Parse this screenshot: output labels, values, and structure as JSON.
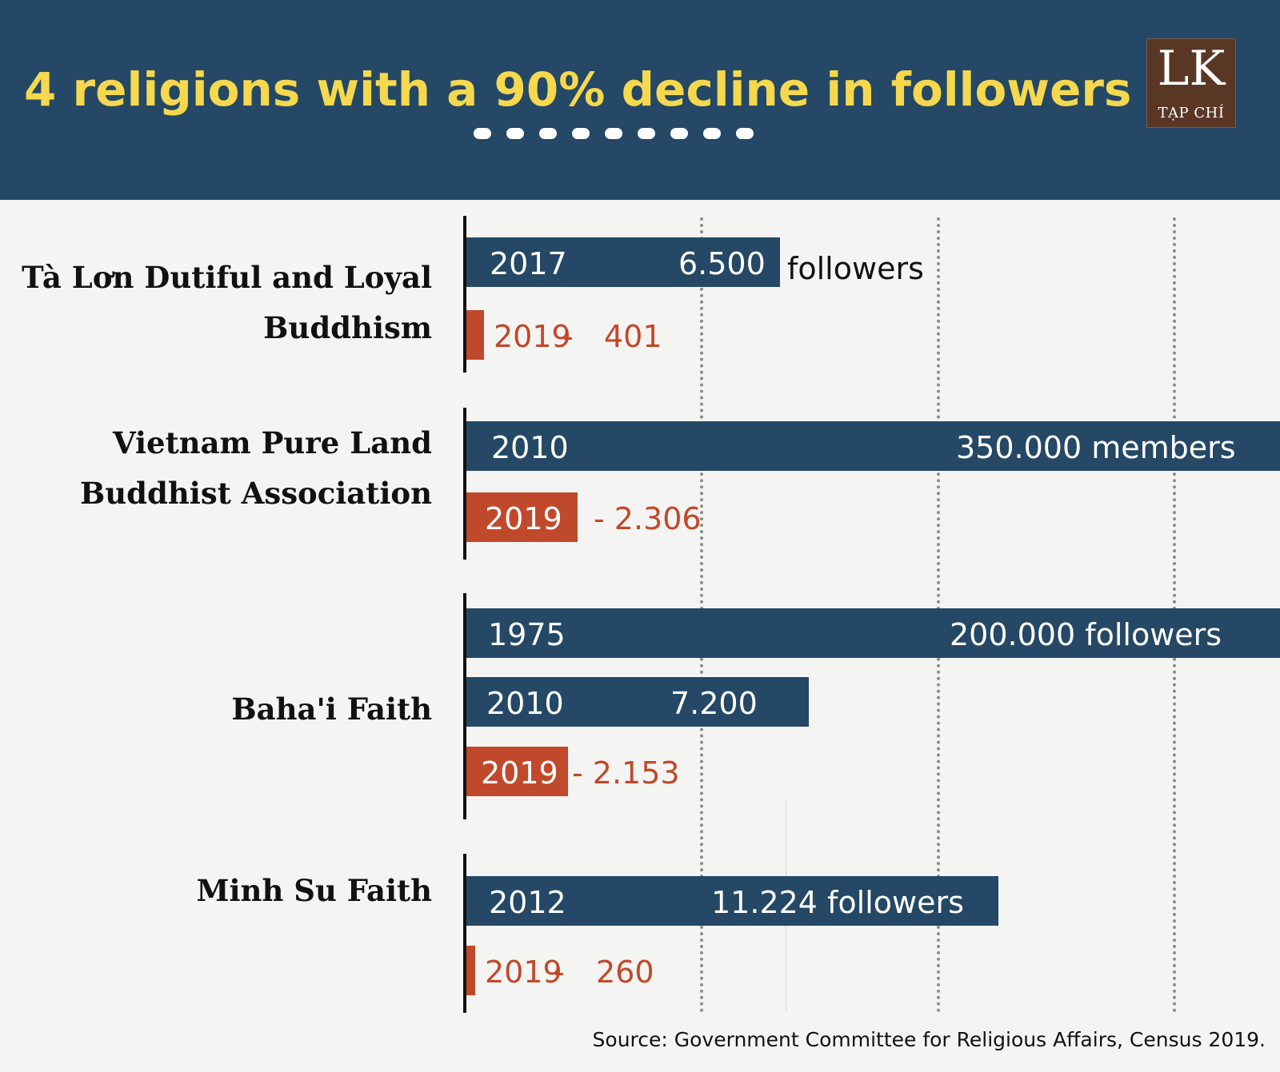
{
  "header": {
    "title": "4 religions with a 90% decline in followers",
    "logo_mark": "LK",
    "logo_text": "TẠP CHÍ"
  },
  "colors": {
    "header_bg": "#244865",
    "title": "#f5d84e",
    "earlier_bar": "#244865",
    "latest_bar": "#c0492b",
    "logo_bg": "#5a3725"
  },
  "chart_data": {
    "type": "bar",
    "orientation": "horizontal",
    "grid": true,
    "categories": [
      {
        "label_lines": [
          "Tà Lơn Dutiful and Loyal",
          "Buddhism"
        ],
        "bars": [
          {
            "year": "2017",
            "value": 6500,
            "value_text": "6.500",
            "after_text": "followers",
            "kind": "earlier"
          },
          {
            "year": "2019",
            "value": 401,
            "value_text": "401",
            "kind": "latest"
          }
        ]
      },
      {
        "label_lines": [
          "Vietnam Pure Land",
          "Buddhist Association"
        ],
        "bars": [
          {
            "year": "2010",
            "value": 350000,
            "value_text": "350.000 members",
            "kind": "earlier"
          },
          {
            "year": "2019",
            "value": 2306,
            "value_text": "- 2.306",
            "kind": "latest"
          }
        ]
      },
      {
        "label_lines": [
          "Baha'i Faith"
        ],
        "bars": [
          {
            "year": "1975",
            "value": 200000,
            "value_text": "200.000 followers",
            "kind": "earlier"
          },
          {
            "year": "2010",
            "value": 7200,
            "value_text": "7.200",
            "kind": "earlier"
          },
          {
            "year": "2019",
            "value": 2153,
            "value_text": "- 2.153",
            "kind": "latest"
          }
        ]
      },
      {
        "label_lines": [
          "Minh Su Faith"
        ],
        "bars": [
          {
            "year": "2012",
            "value": 11224,
            "value_text": "11.224 followers",
            "kind": "earlier"
          },
          {
            "year": "2019",
            "value": 260,
            "value_text": "260",
            "kind": "latest"
          }
        ]
      }
    ]
  },
  "source": "Source: Government Committee for Religious Affairs, Census 2019."
}
